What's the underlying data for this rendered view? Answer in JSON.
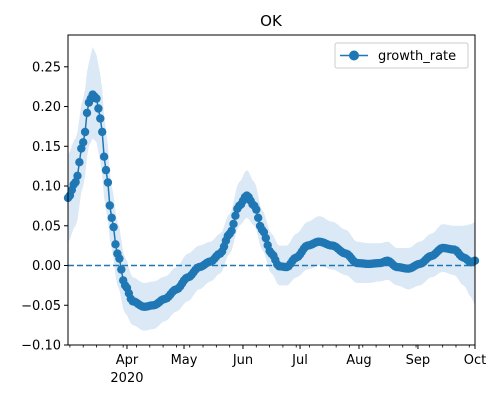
{
  "chart_data": {
    "type": "line",
    "title": "OK",
    "xlabel": "",
    "ylabel": "",
    "x_start": "2020-03-01",
    "x_end": "2020-10-01",
    "ylim": [
      -0.1,
      0.29
    ],
    "y_ticks": [
      -0.1,
      -0.05,
      0.0,
      0.05,
      0.1,
      0.15,
      0.2,
      0.25
    ],
    "y_tick_labels": [
      "−0.10",
      "−0.05",
      "0.00",
      "0.05",
      "0.10",
      "0.15",
      "0.20",
      "0.25"
    ],
    "x_ticks": [
      {
        "date": "2020-04-01",
        "label": "Apr",
        "sublabel": "2020"
      },
      {
        "date": "2020-05-01",
        "label": "May",
        "sublabel": ""
      },
      {
        "date": "2020-06-01",
        "label": "Jun",
        "sublabel": ""
      },
      {
        "date": "2020-07-01",
        "label": "Jul",
        "sublabel": ""
      },
      {
        "date": "2020-08-01",
        "label": "Aug",
        "sublabel": ""
      },
      {
        "date": "2020-09-01",
        "label": "Sep",
        "sublabel": ""
      },
      {
        "date": "2020-10-01",
        "label": "Oct",
        "sublabel": ""
      }
    ],
    "legend": {
      "position": "top-right"
    },
    "reference_line": {
      "y": 0.0,
      "style": "dashed"
    },
    "series": [
      {
        "name": "growth_rate",
        "color": "#1f77b4",
        "band_color": "#dbe8f5",
        "keypoints": [
          {
            "x": "2020-03-01",
            "y": 0.085,
            "lo": 0.03,
            "hi": 0.14
          },
          {
            "x": "2020-03-05",
            "y": 0.105,
            "lo": 0.05,
            "hi": 0.16
          },
          {
            "x": "2020-03-09",
            "y": 0.155,
            "lo": 0.1,
            "hi": 0.21
          },
          {
            "x": "2020-03-12",
            "y": 0.205,
            "lo": 0.15,
            "hi": 0.255
          },
          {
            "x": "2020-03-14",
            "y": 0.215,
            "lo": 0.16,
            "hi": 0.275
          },
          {
            "x": "2020-03-16",
            "y": 0.21,
            "lo": 0.155,
            "hi": 0.265
          },
          {
            "x": "2020-03-18",
            "y": 0.185,
            "lo": 0.13,
            "hi": 0.24
          },
          {
            "x": "2020-03-21",
            "y": 0.12,
            "lo": 0.07,
            "hi": 0.17
          },
          {
            "x": "2020-03-24",
            "y": 0.06,
            "lo": 0.02,
            "hi": 0.1
          },
          {
            "x": "2020-03-27",
            "y": 0.015,
            "lo": -0.025,
            "hi": 0.055
          },
          {
            "x": "2020-03-31",
            "y": -0.025,
            "lo": -0.06,
            "hi": 0.01
          },
          {
            "x": "2020-04-04",
            "y": -0.045,
            "lo": -0.075,
            "hi": -0.015
          },
          {
            "x": "2020-04-10",
            "y": -0.052,
            "lo": -0.082,
            "hi": -0.022
          },
          {
            "x": "2020-04-15",
            "y": -0.05,
            "lo": -0.08,
            "hi": -0.02
          },
          {
            "x": "2020-04-21",
            "y": -0.042,
            "lo": -0.07,
            "hi": -0.014
          },
          {
            "x": "2020-04-27",
            "y": -0.03,
            "lo": -0.058,
            "hi": -0.002
          },
          {
            "x": "2020-05-03",
            "y": -0.015,
            "lo": -0.045,
            "hi": 0.015
          },
          {
            "x": "2020-05-09",
            "y": -0.002,
            "lo": -0.03,
            "hi": 0.025
          },
          {
            "x": "2020-05-15",
            "y": 0.005,
            "lo": -0.02,
            "hi": 0.03
          },
          {
            "x": "2020-05-20",
            "y": 0.015,
            "lo": -0.01,
            "hi": 0.04
          },
          {
            "x": "2020-05-25",
            "y": 0.04,
            "lo": 0.015,
            "hi": 0.065
          },
          {
            "x": "2020-05-30",
            "y": 0.075,
            "lo": 0.05,
            "hi": 0.105
          },
          {
            "x": "2020-06-03",
            "y": 0.088,
            "lo": 0.06,
            "hi": 0.12
          },
          {
            "x": "2020-06-07",
            "y": 0.075,
            "lo": 0.05,
            "hi": 0.105
          },
          {
            "x": "2020-06-11",
            "y": 0.045,
            "lo": 0.02,
            "hi": 0.07
          },
          {
            "x": "2020-06-16",
            "y": 0.015,
            "lo": -0.01,
            "hi": 0.04
          },
          {
            "x": "2020-06-20",
            "y": -0.001,
            "lo": -0.025,
            "hi": 0.025
          },
          {
            "x": "2020-06-24",
            "y": -0.002,
            "lo": -0.025,
            "hi": 0.025
          },
          {
            "x": "2020-06-29",
            "y": 0.01,
            "lo": -0.015,
            "hi": 0.04
          },
          {
            "x": "2020-07-05",
            "y": 0.025,
            "lo": -0.005,
            "hi": 0.055
          },
          {
            "x": "2020-07-11",
            "y": 0.03,
            "lo": 0.0,
            "hi": 0.062
          },
          {
            "x": "2020-07-18",
            "y": 0.025,
            "lo": -0.005,
            "hi": 0.055
          },
          {
            "x": "2020-07-25",
            "y": 0.015,
            "lo": -0.012,
            "hi": 0.045
          },
          {
            "x": "2020-07-31",
            "y": 0.003,
            "lo": -0.022,
            "hi": 0.03
          },
          {
            "x": "2020-08-06",
            "y": 0.002,
            "lo": -0.022,
            "hi": 0.028
          },
          {
            "x": "2020-08-12",
            "y": 0.003,
            "lo": -0.02,
            "hi": 0.028
          },
          {
            "x": "2020-08-16",
            "y": 0.006,
            "lo": -0.018,
            "hi": 0.03
          },
          {
            "x": "2020-08-21",
            "y": -0.002,
            "lo": -0.025,
            "hi": 0.022
          },
          {
            "x": "2020-08-27",
            "y": -0.004,
            "lo": -0.03,
            "hi": 0.022
          },
          {
            "x": "2020-09-02",
            "y": 0.002,
            "lo": -0.025,
            "hi": 0.03
          },
          {
            "x": "2020-09-08",
            "y": 0.012,
            "lo": -0.015,
            "hi": 0.04
          },
          {
            "x": "2020-09-14",
            "y": 0.022,
            "lo": -0.008,
            "hi": 0.052
          },
          {
            "x": "2020-09-20",
            "y": 0.02,
            "lo": -0.012,
            "hi": 0.05
          },
          {
            "x": "2020-09-25",
            "y": 0.01,
            "lo": -0.025,
            "hi": 0.05
          },
          {
            "x": "2020-09-29",
            "y": 0.004,
            "lo": -0.04,
            "hi": 0.052
          },
          {
            "x": "2020-10-01",
            "y": 0.006,
            "lo": -0.05,
            "hi": 0.055
          }
        ]
      }
    ]
  }
}
